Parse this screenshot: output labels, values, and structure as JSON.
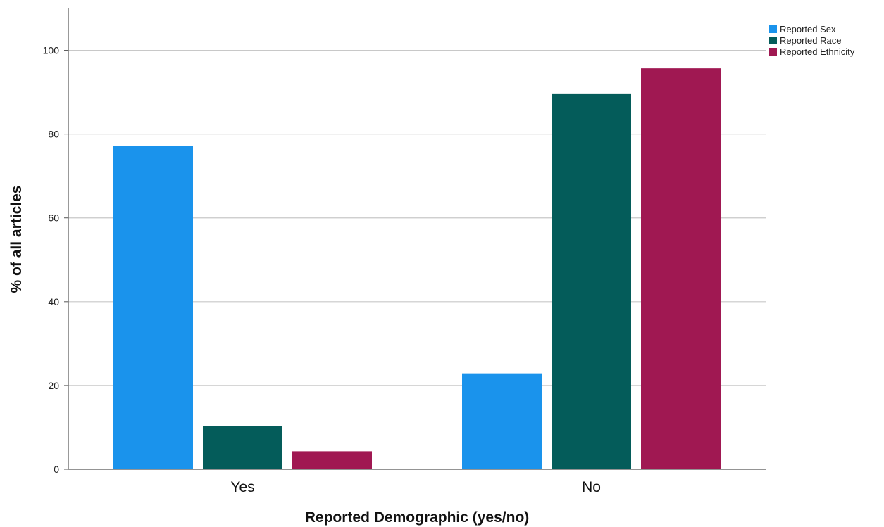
{
  "chart_data": {
    "type": "bar",
    "title": "",
    "xlabel": "Reported Demographic (yes/no)",
    "ylabel": "% of all articles",
    "categories": [
      "Yes",
      "No"
    ],
    "series": [
      {
        "name": "Reported Sex",
        "color": "#1a93ec",
        "values": [
          77.1,
          22.9
        ]
      },
      {
        "name": "Reported Race",
        "color": "#045c5a",
        "values": [
          10.3,
          89.7
        ]
      },
      {
        "name": "Reported Ethnicity",
        "color": "#a01852",
        "values": [
          4.3,
          95.7
        ]
      }
    ],
    "ylim": [
      0,
      110
    ],
    "yticks": [
      0,
      20,
      40,
      60,
      80,
      100
    ],
    "grid": true,
    "legend_position": "top-right"
  }
}
